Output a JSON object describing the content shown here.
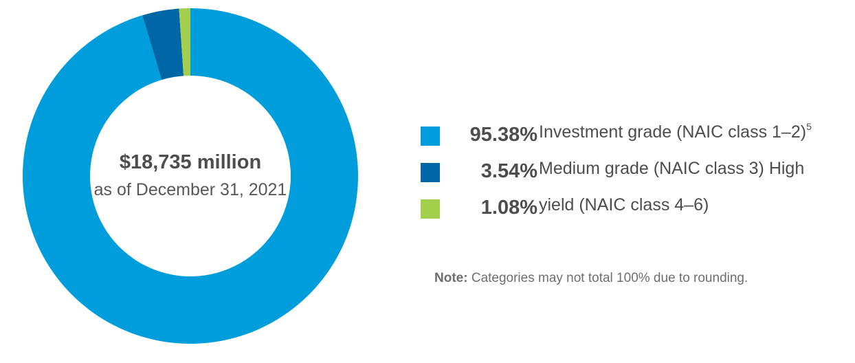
{
  "center": {
    "amount": "$18,735 million",
    "date": "as of December 31, 2021"
  },
  "legend": [
    {
      "value": "95.38%",
      "label": "Investment grade (NAIC class 1–2)",
      "footnote": "5",
      "color": "#009ddc"
    },
    {
      "value": "3.54%",
      "label": "Medium grade (NAIC class 3) High",
      "footnote": "",
      "color": "#0067a6"
    },
    {
      "value": "1.08%",
      "label": "yield (NAIC class 4–6)",
      "footnote": "",
      "color": "#a4cf4a"
    }
  ],
  "note": {
    "prefix": "Note:",
    "text": " Categories may not total 100% due to rounding."
  },
  "chart_data": {
    "type": "pie",
    "style": "donut",
    "title": "",
    "center_text": [
      "$18,735 million",
      "as of December 31, 2021"
    ],
    "total": 18735,
    "total_unit": "million",
    "categories": [
      "Investment grade (NAIC class 1–2)",
      "Medium grade (NAIC class 3) High",
      "yield (NAIC class 4–6)"
    ],
    "values": [
      95.38,
      3.54,
      1.08
    ],
    "colors": [
      "#009ddc",
      "#0067a6",
      "#a4cf4a"
    ],
    "legend_position": "right",
    "direction": "clockwise-from-top"
  }
}
